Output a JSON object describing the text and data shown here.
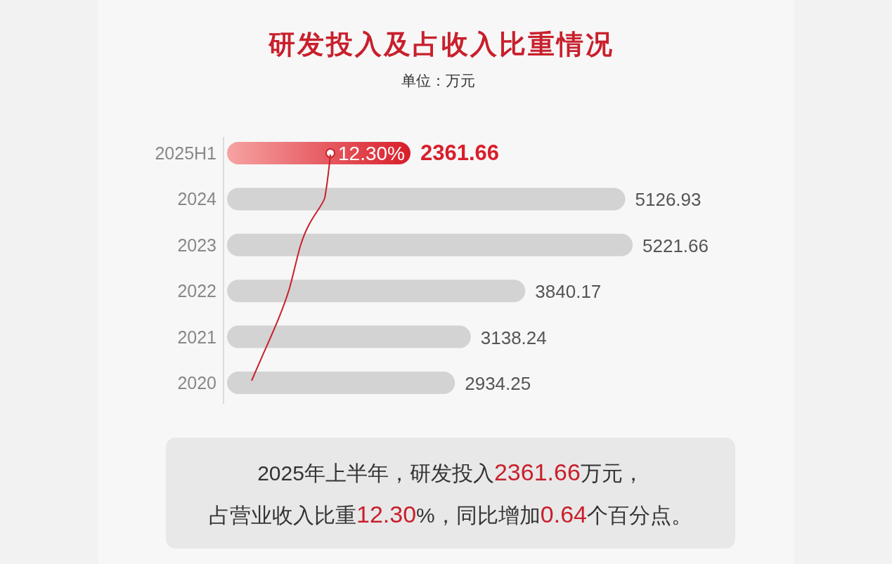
{
  "chart_data": {
    "type": "bar",
    "orientation": "horizontal",
    "title": "研发投入及占收入比重情况",
    "subtitle": "单位：万元",
    "categories": [
      "2025H1",
      "2024",
      "2023",
      "2022",
      "2021",
      "2020"
    ],
    "values": [
      2361.66,
      5126.93,
      5221.66,
      3840.17,
      3138.24,
      2934.25
    ],
    "colors": [
      "#d81e2a",
      "#d3d3d3",
      "#d3d3d3",
      "#d3d3d3",
      "#d3d3d3",
      "#d3d3d3"
    ],
    "data_labels": true,
    "annotations": [
      "12.30%",
      "2025年上半年，研发投入2361.66万元，",
      "占营业收入比重12.30%，同比增加0.64个百分点。"
    ]
  }
}
